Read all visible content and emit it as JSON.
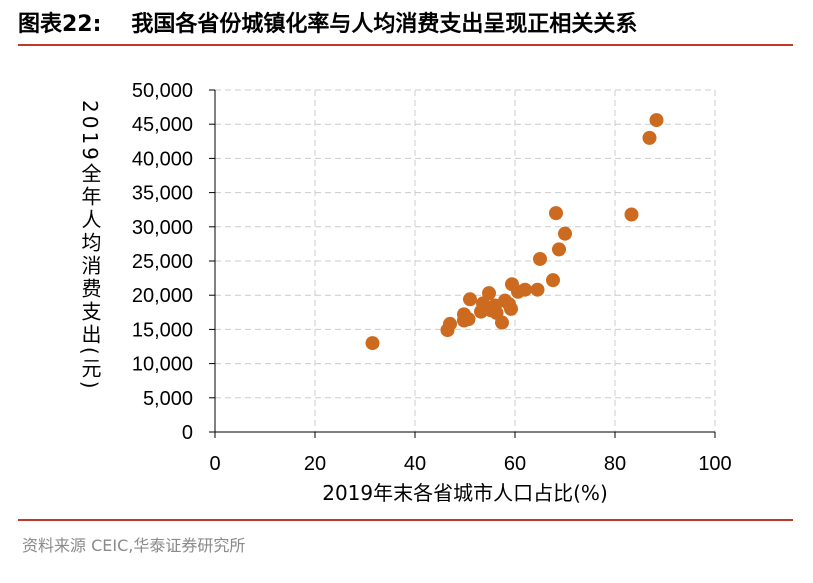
{
  "header": {
    "figure_label": "图表22:",
    "title": "我国各省份城镇化率与人均消费支出呈现正相关关系"
  },
  "footer": {
    "source": "资料来源 CEIC,华泰证券研究所"
  },
  "colors": {
    "marker": "#CC6A20",
    "rule": "#C0392B",
    "grid": "#CCCCCC"
  },
  "chart_data": {
    "type": "scatter",
    "title": "",
    "xlabel": "2019年末各省城市人口占比(%)",
    "ylabel": "2019全年人均消费支出(元)",
    "xlim": [
      0,
      100
    ],
    "ylim": [
      0,
      50000
    ],
    "x_ticks": [
      "0",
      "20",
      "40",
      "60",
      "80",
      "100"
    ],
    "y_ticks": [
      "0",
      "5,000",
      "10,000",
      "15,000",
      "20,000",
      "25,000",
      "30,000",
      "35,000",
      "40,000",
      "45,000",
      "50,000"
    ],
    "grid": true,
    "legend": "none",
    "points": [
      {
        "x": 31.5,
        "y": 13000
      },
      {
        "x": 46.5,
        "y": 14900
      },
      {
        "x": 47.0,
        "y": 15800
      },
      {
        "x": 49.8,
        "y": 16300
      },
      {
        "x": 49.8,
        "y": 17200
      },
      {
        "x": 50.7,
        "y": 16500
      },
      {
        "x": 51.0,
        "y": 19400
      },
      {
        "x": 53.2,
        "y": 17600
      },
      {
        "x": 53.6,
        "y": 18800
      },
      {
        "x": 54.8,
        "y": 20300
      },
      {
        "x": 55.2,
        "y": 17800
      },
      {
        "x": 56.0,
        "y": 18500
      },
      {
        "x": 56.3,
        "y": 17400
      },
      {
        "x": 57.4,
        "y": 16000
      },
      {
        "x": 58.0,
        "y": 19200
      },
      {
        "x": 58.8,
        "y": 18700
      },
      {
        "x": 59.2,
        "y": 18000
      },
      {
        "x": 59.4,
        "y": 21600
      },
      {
        "x": 60.6,
        "y": 20500
      },
      {
        "x": 62.0,
        "y": 20800
      },
      {
        "x": 64.5,
        "y": 20800
      },
      {
        "x": 65.0,
        "y": 25300
      },
      {
        "x": 67.6,
        "y": 22200
      },
      {
        "x": 68.2,
        "y": 32000
      },
      {
        "x": 68.8,
        "y": 26700
      },
      {
        "x": 70.0,
        "y": 29000
      },
      {
        "x": 83.3,
        "y": 31800
      },
      {
        "x": 86.9,
        "y": 43000
      },
      {
        "x": 88.3,
        "y": 45600
      }
    ]
  }
}
